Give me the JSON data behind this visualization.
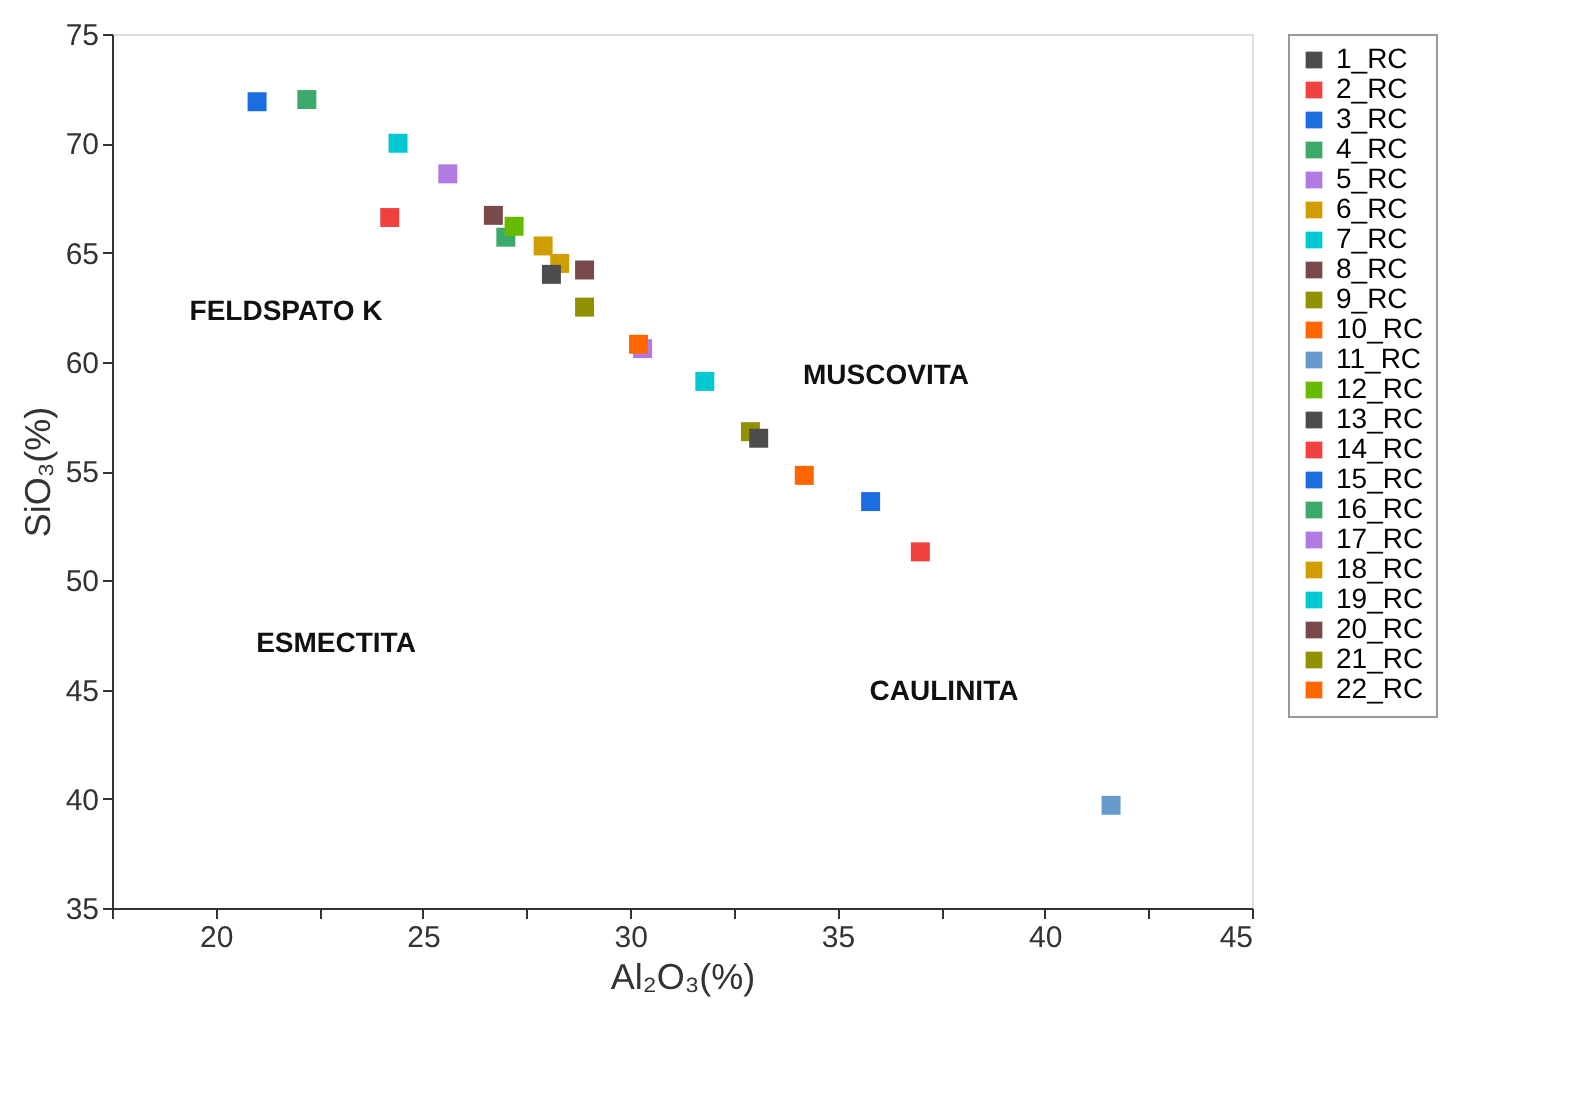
{
  "chart_data": {
    "type": "scatter",
    "xlabel": "Al₂O₃(%)",
    "ylabel": "SiO₃(%)",
    "xlim": [
      17.5,
      45
    ],
    "ylim": [
      35,
      75
    ],
    "xticks": [
      {
        "value": 17.5,
        "label": null
      },
      20,
      {
        "value": 22.5,
        "label": null
      },
      25,
      {
        "value": 27.5,
        "label": null
      },
      30,
      {
        "value": 32.5,
        "label": null
      },
      35,
      {
        "value": 37.5,
        "label": null
      },
      40,
      {
        "value": 42.5,
        "label": null
      },
      45
    ],
    "yticks": [
      35,
      40,
      45,
      50,
      55,
      60,
      65,
      70,
      75
    ],
    "marker": "square",
    "grid": false,
    "legend": "right",
    "series": [
      {
        "name": "1_RC",
        "color": "#4d4d4d",
        "x": [
          28.1
        ],
        "values": [
          64.0
        ]
      },
      {
        "name": "2_RC",
        "color": "#f04040",
        "x": [
          24.2
        ],
        "values": [
          66.6
        ]
      },
      {
        "name": "3_RC",
        "color": "#1a6ee0",
        "x": [
          21.0
        ],
        "values": [
          71.9
        ]
      },
      {
        "name": "4_RC",
        "color": "#3caa6a",
        "x": [
          22.2
        ],
        "values": [
          72.0
        ]
      },
      {
        "name": "5_RC",
        "color": "#b07ae0",
        "x": [
          25.6
        ],
        "values": [
          68.6
        ]
      },
      {
        "name": "6_RC",
        "color": "#d09e00",
        "x": [
          27.9
        ],
        "values": [
          65.3
        ]
      },
      {
        "name": "7_RC",
        "color": "#00c8d0",
        "x": [
          24.4
        ],
        "values": [
          70.0
        ]
      },
      {
        "name": "8_RC",
        "color": "#7a4a4a",
        "x": [
          26.7
        ],
        "values": [
          66.7
        ]
      },
      {
        "name": "9_RC",
        "color": "#909000",
        "x": [
          28.9
        ],
        "values": [
          62.5
        ]
      },
      {
        "name": "10_RC",
        "color": "#ff6600",
        "x": [
          30.2
        ],
        "values": [
          60.8
        ]
      },
      {
        "name": "11_RC",
        "color": "#6699cc",
        "x": [
          41.6
        ],
        "values": [
          39.7
        ]
      },
      {
        "name": "12_RC",
        "color": "#66bb00",
        "x": [
          27.2
        ],
        "values": [
          66.2
        ]
      },
      {
        "name": "13_RC",
        "color": "#4d4d4d",
        "x": [
          33.1
        ],
        "values": [
          56.5
        ]
      },
      {
        "name": "14_RC",
        "color": "#f04040",
        "x": [
          37.0
        ],
        "values": [
          51.3
        ]
      },
      {
        "name": "15_RC",
        "color": "#1a6ee0",
        "x": [
          35.8
        ],
        "values": [
          53.6
        ]
      },
      {
        "name": "16_RC",
        "color": "#3caa6a",
        "x": [
          27.0
        ],
        "values": [
          65.7
        ]
      },
      {
        "name": "17_RC",
        "color": "#b07ae0",
        "x": [
          30.3
        ],
        "values": [
          60.6
        ]
      },
      {
        "name": "18_RC",
        "color": "#d09e00",
        "x": [
          28.3
        ],
        "values": [
          64.5
        ]
      },
      {
        "name": "19_RC",
        "color": "#00c8d0",
        "x": [
          31.8
        ],
        "values": [
          59.1
        ]
      },
      {
        "name": "20_RC",
        "color": "#7a4a4a",
        "x": [
          28.9
        ],
        "values": [
          64.2
        ]
      },
      {
        "name": "21_RC",
        "color": "#909000",
        "x": [
          32.9
        ],
        "values": [
          56.8
        ]
      },
      {
        "name": "22_RC",
        "color": "#ff6600",
        "x": [
          34.2
        ],
        "values": [
          54.8
        ]
      }
    ],
    "annotations": [
      "FELDSPATO K",
      "MUSCOVITA",
      "ESMECTITA",
      "CAULINITA"
    ]
  }
}
